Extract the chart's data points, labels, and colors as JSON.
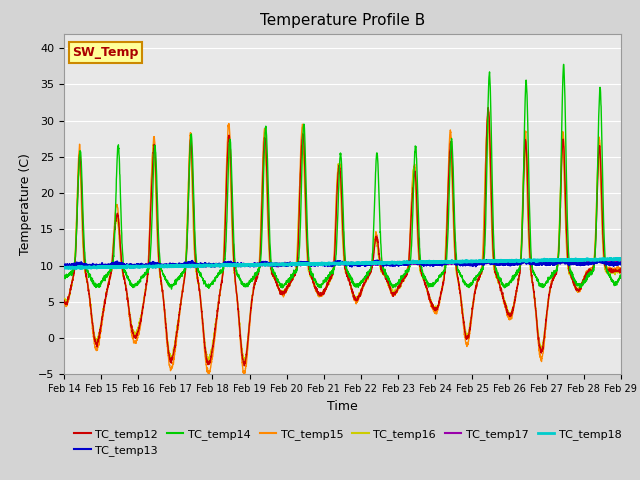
{
  "title": "Temperature Profile B",
  "xlabel": "Time",
  "ylabel": "Temperature (C)",
  "ylim": [
    -5,
    42
  ],
  "series_colors": {
    "TC_temp12": "#cc0000",
    "TC_temp13": "#0000cc",
    "TC_temp14": "#00cc00",
    "TC_temp15": "#ff8800",
    "TC_temp16": "#cccc00",
    "TC_temp17": "#9900aa",
    "TC_temp18": "#00cccc"
  },
  "sw_temp_box_facecolor": "#ffff99",
  "sw_temp_text_color": "#aa0000",
  "sw_temp_border_color": "#cc8800",
  "fig_bg_color": "#d4d4d4",
  "plot_bg_color": "#e8e8e8",
  "grid_color": "#ffffff",
  "x_tick_labels": [
    "Feb 14",
    "Feb 15",
    "Feb 16",
    "Feb 17",
    "Feb 18",
    "Feb 19",
    "Feb 20",
    "Feb 21",
    "Feb 22",
    "Feb 23",
    "Feb 24",
    "Feb 25",
    "Feb 26",
    "Feb 27",
    "Feb 28",
    "Feb 29"
  ],
  "title_fontsize": 11,
  "legend_fontsize": 8,
  "axis_label_fontsize": 9,
  "tick_fontsize": 8
}
